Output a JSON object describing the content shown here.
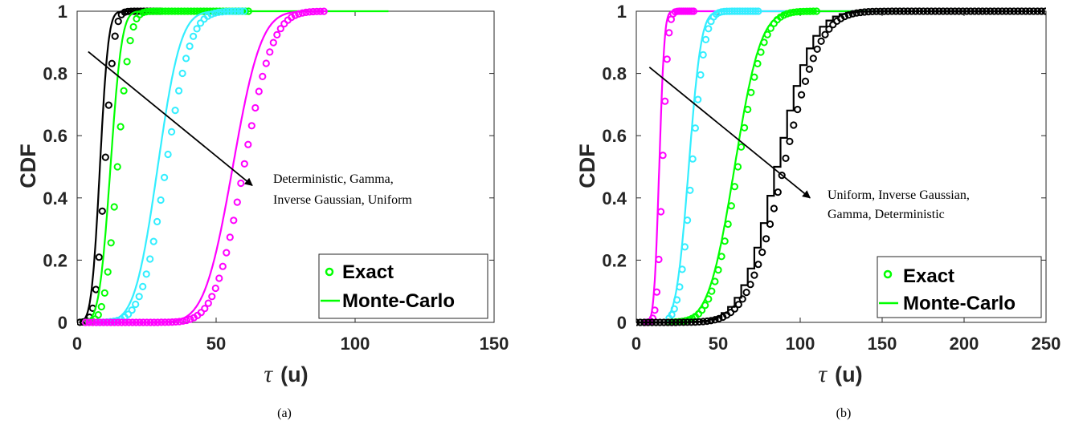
{
  "chart_data": [
    {
      "type": "line",
      "caption": "(a)",
      "ylabel": "CDF",
      "xlabel_symbol": "τ",
      "xlabel_unit": "(u)",
      "xlim": [
        0,
        150
      ],
      "ylim": [
        0,
        1
      ],
      "xticks": [
        0,
        50,
        100,
        150
      ],
      "yticks": [
        0,
        0.2,
        0.4,
        0.6,
        0.8,
        1
      ],
      "ytick_labels": [
        "0",
        "0.2",
        "0.4",
        "0.6",
        "0.8",
        "1"
      ],
      "annotation": [
        "Deterministic, Gamma,",
        "Inverse Gaussian, Uniform"
      ],
      "arrow": {
        "from": [
          4,
          0.87
        ],
        "to": [
          63,
          0.44
        ]
      },
      "legend": {
        "position": "bottom-right",
        "entries": [
          "Exact",
          "Monte-Carlo"
        ],
        "color": "#00ff00"
      },
      "series": [
        {
          "color": "#000000",
          "mc": {
            "mean": 8.2,
            "sd": 2.4,
            "xmin": 1,
            "xmax": 30
          },
          "exact": {
            "mean": 10.0,
            "sd": 2.6,
            "xmin": 1,
            "xmax": 30,
            "step": 1.15
          }
        },
        {
          "color": "#00ff00",
          "mc": {
            "mean": 12.0,
            "sd": 3.2,
            "xmin": 3,
            "xmax": 112
          },
          "exact": {
            "mean": 14.5,
            "sd": 3.5,
            "xmin": 3,
            "xmax": 62,
            "step": 1.15
          }
        },
        {
          "color": "#33eeff",
          "mc": {
            "mean": 29.0,
            "sd": 6.5,
            "xmin": 8,
            "xmax": 60
          },
          "exact": {
            "mean": 32.0,
            "sd": 7.0,
            "xmin": 8,
            "xmax": 60,
            "step": 1.3
          }
        },
        {
          "color": "#ff00ff",
          "mc": {
            "mean": 56.0,
            "sd": 8.0,
            "xmin": 3,
            "xmax": 90
          },
          "exact": {
            "mean": 60.0,
            "sd": 8.3,
            "xmin": 3,
            "xmax": 90,
            "step": 1.3
          }
        }
      ]
    },
    {
      "type": "line",
      "caption": "(b)",
      "ylabel": "CDF",
      "xlabel_symbol": "τ",
      "xlabel_unit": "(u)",
      "xlim": [
        0,
        250
      ],
      "ylim": [
        0,
        1
      ],
      "xticks": [
        0,
        50,
        100,
        150,
        200,
        250
      ],
      "yticks": [
        0,
        0.2,
        0.4,
        0.6,
        0.8,
        1
      ],
      "ytick_labels": [
        "0",
        "0.2",
        "0.4",
        "0.6",
        "0.8",
        "1"
      ],
      "annotation": [
        "Uniform, Inverse Gaussian,",
        "Gamma, Deterministic"
      ],
      "arrow": {
        "from": [
          8,
          0.82
        ],
        "to": [
          106,
          0.4
        ]
      },
      "legend": {
        "position": "bottom-right",
        "entries": [
          "Exact",
          "Monte-Carlo"
        ],
        "color": "#00ff00"
      },
      "series": [
        {
          "color": "#ff00ff",
          "mc": {
            "mean": 14.0,
            "sd": 2.5,
            "xmin": 5,
            "xmax": 200
          },
          "exact": {
            "mean": 16.0,
            "sd": 2.7,
            "xmin": 5,
            "xmax": 35,
            "step": 1.25
          }
        },
        {
          "color": "#33eeff",
          "mc": {
            "mean": 32.0,
            "sd": 6.0,
            "xmin": 20,
            "xmax": 160
          },
          "exact": {
            "mean": 34.0,
            "sd": 6.3,
            "xmin": 20,
            "xmax": 75,
            "step": 1.6
          }
        },
        {
          "color": "#00ff00",
          "mc": {
            "mean": 60.0,
            "sd": 12.5,
            "xmin": 20,
            "xmax": 200
          },
          "exact": {
            "mean": 62.0,
            "sd": 12.5,
            "xmin": 20,
            "xmax": 110,
            "step": 2.0
          }
        },
        {
          "color": "#000000",
          "mc": {
            "mean": 88.0,
            "sd": 17.0,
            "xmin": 0,
            "xmax": 250,
            "steps": 4
          },
          "exact": {
            "mean": 90.0,
            "sd": 17.5,
            "xmin": 0,
            "xmax": 250,
            "step": 2.4
          }
        }
      ]
    }
  ]
}
